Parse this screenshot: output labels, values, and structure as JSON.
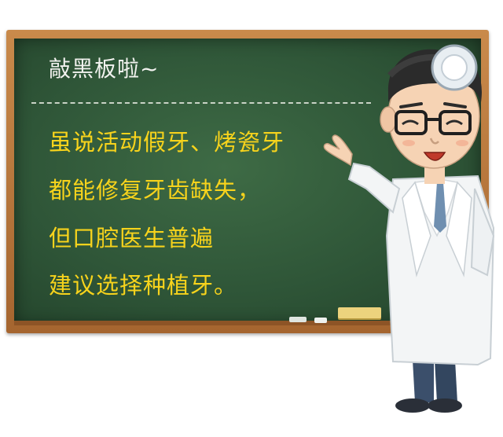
{
  "board": {
    "title": "敲黑板啦~",
    "lines": [
      "虽说活动假牙、烤瓷牙",
      "都能修复牙齿缺失，",
      "但口腔医生普遍",
      "建议选择种植牙。"
    ]
  },
  "colors": {
    "board_green": "#2f5638",
    "frame_wood": "#b8743a",
    "highlight_text": "#f7d31c",
    "title_text": "#f2f2ef"
  },
  "illustration": {
    "subject": "cartoon doctor with head mirror pointing at chalkboard"
  }
}
